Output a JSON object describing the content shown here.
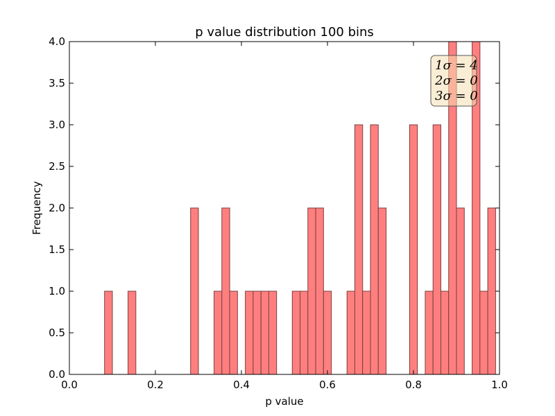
{
  "chart_data": {
    "type": "bar",
    "title": "p value distribution 100 bins",
    "xlabel": "p value",
    "ylabel": "Frequency",
    "xlim": [
      0.0,
      1.0
    ],
    "ylim": [
      0.0,
      4.0
    ],
    "xticks": [
      "0.0",
      "0.2",
      "0.4",
      "0.6",
      "0.8",
      "1.0"
    ],
    "yticks": [
      "0.0",
      "0.5",
      "1.0",
      "1.5",
      "2.0",
      "2.5",
      "3.0",
      "3.5",
      "4.0"
    ],
    "bar_color": "#ff7f7f",
    "edge_color": "#7a3e3e",
    "bin_width": 0.01818,
    "bins": [
      {
        "x": 0.0818,
        "value": 1
      },
      {
        "x": 0.1364,
        "value": 1
      },
      {
        "x": 0.2818,
        "value": 2
      },
      {
        "x": 0.3364,
        "value": 1
      },
      {
        "x": 0.3545,
        "value": 2
      },
      {
        "x": 0.3727,
        "value": 1
      },
      {
        "x": 0.4091,
        "value": 1
      },
      {
        "x": 0.4273,
        "value": 1
      },
      {
        "x": 0.4455,
        "value": 1
      },
      {
        "x": 0.4636,
        "value": 1
      },
      {
        "x": 0.5182,
        "value": 1
      },
      {
        "x": 0.5364,
        "value": 1
      },
      {
        "x": 0.5545,
        "value": 2
      },
      {
        "x": 0.5727,
        "value": 2
      },
      {
        "x": 0.5909,
        "value": 1
      },
      {
        "x": 0.6455,
        "value": 1
      },
      {
        "x": 0.6636,
        "value": 3
      },
      {
        "x": 0.6818,
        "value": 1
      },
      {
        "x": 0.7,
        "value": 3
      },
      {
        "x": 0.7182,
        "value": 2
      },
      {
        "x": 0.7909,
        "value": 3
      },
      {
        "x": 0.8273,
        "value": 1
      },
      {
        "x": 0.8455,
        "value": 3
      },
      {
        "x": 0.8636,
        "value": 1
      },
      {
        "x": 0.8818,
        "value": 4
      },
      {
        "x": 0.9,
        "value": 2
      },
      {
        "x": 0.9364,
        "value": 4
      },
      {
        "x": 0.9545,
        "value": 1
      },
      {
        "x": 0.9727,
        "value": 2
      }
    ],
    "annotation": {
      "lines": [
        "1σ = 4",
        "2σ = 0",
        "3σ = 0"
      ],
      "background": "#f5deb3",
      "placement": "top-right"
    }
  }
}
